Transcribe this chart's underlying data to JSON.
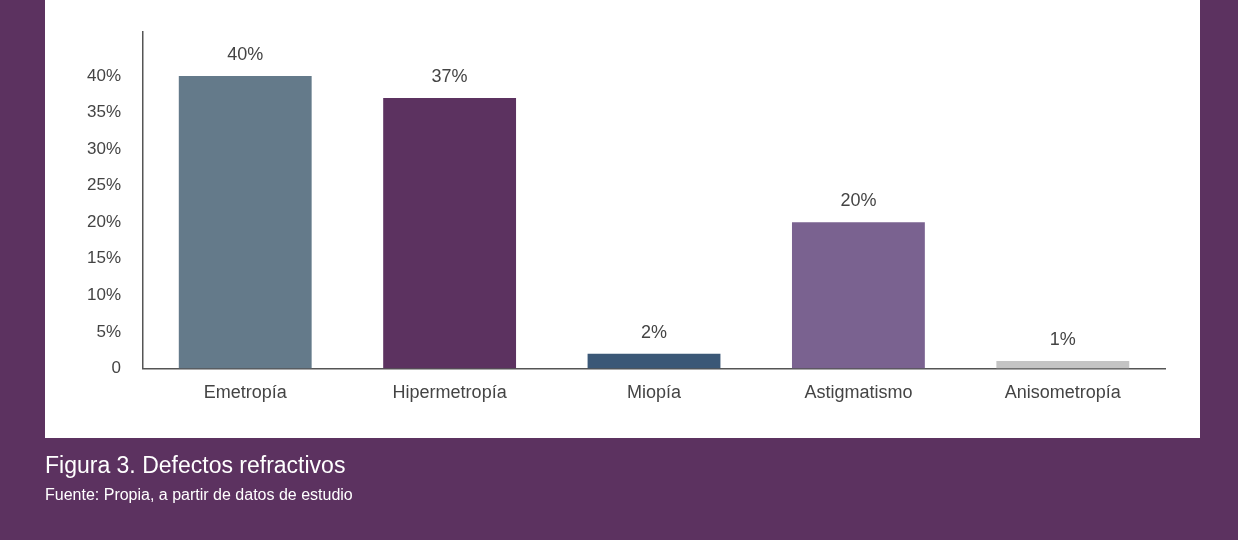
{
  "chart_data": {
    "type": "bar",
    "title": "Figura 3. Defectos refractivos",
    "annotations": [
      "Fuente: Propia, a partir de datos de estudio"
    ],
    "categories": [
      "Emetropía",
      "Hipermetropía",
      "Miopía",
      "Astigmatismo",
      "Anisometropía"
    ],
    "values": [
      40,
      37,
      2,
      20,
      1
    ],
    "colors": [
      "#647a8a",
      "#5c3260",
      "#3b5877",
      "#7a6290",
      "#c4c4c4"
    ],
    "value_labels": [
      "40%",
      "37%",
      "2%",
      "20%",
      "1%"
    ],
    "ylim": [
      0,
      46
    ],
    "yticks": [
      0,
      {
        "value": 5,
        "label": "5%"
      },
      {
        "value": 10,
        "label": "10%"
      },
      {
        "value": 15,
        "label": "15%"
      },
      {
        "value": 20,
        "label": "20%"
      },
      {
        "value": 25,
        "label": "25%"
      },
      {
        "value": 30,
        "label": "30%"
      },
      {
        "value": 35,
        "label": "35%"
      },
      {
        "value": 40,
        "label": "40%"
      }
    ],
    "grid": false,
    "legend": false
  }
}
